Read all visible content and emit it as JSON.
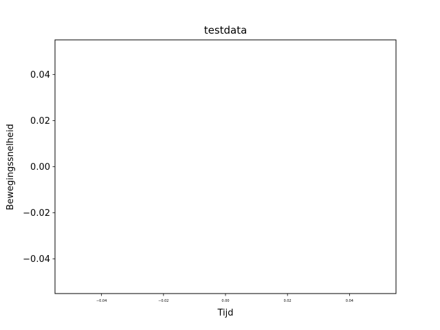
{
  "chart_data": {
    "type": "line",
    "title": "testdata",
    "xlabel": "Tijd",
    "ylabel": "Bewegingssnelheid",
    "xlim": [
      -0.055,
      0.055
    ],
    "ylim": [
      -0.055,
      0.055
    ],
    "x_ticks": [
      -0.04,
      -0.02,
      0.0,
      0.02,
      0.04
    ],
    "x_tick_labels": [
      "−0.04",
      "−0.02",
      "0.00",
      "0.02",
      "0.04"
    ],
    "y_ticks": [
      0.04,
      0.02,
      0.0,
      -0.02,
      -0.04
    ],
    "y_tick_labels": [
      "0.04",
      "0.02",
      "0.00",
      "−0.02",
      "−0.04"
    ],
    "series": [],
    "grid": false
  }
}
